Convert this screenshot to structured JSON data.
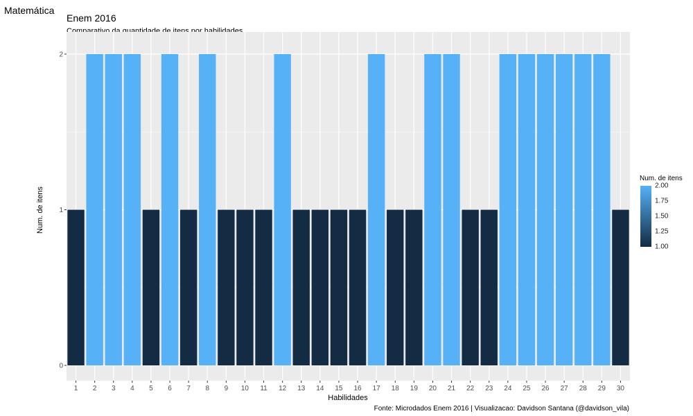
{
  "window_title": "Matemática",
  "colors": {
    "panel_background": "#EBEBEB",
    "gridline": "#FFFFFF",
    "low": "#132B43",
    "high": "#56B1F7"
  },
  "chart_data": {
    "type": "bar",
    "title": "Enem 2016",
    "subtitle": "Comparativo da quantidade de itens por habilidades",
    "xlabel": "Habilidades",
    "ylabel": "Num. de itens",
    "caption": "Fonte: Microdados Enem 2016 | Visualizacao: Davidson Santana (@davidson_vila)",
    "categories": [
      "1",
      "2",
      "3",
      "4",
      "5",
      "6",
      "7",
      "8",
      "9",
      "10",
      "11",
      "12",
      "13",
      "14",
      "15",
      "16",
      "17",
      "18",
      "19",
      "20",
      "21",
      "22",
      "23",
      "24",
      "25",
      "26",
      "27",
      "28",
      "29",
      "30"
    ],
    "values": [
      1,
      2,
      2,
      2,
      1,
      2,
      1,
      2,
      1,
      1,
      1,
      2,
      1,
      1,
      1,
      1,
      2,
      1,
      1,
      2,
      2,
      1,
      1,
      2,
      2,
      2,
      2,
      2,
      2,
      1
    ],
    "ylim": [
      0,
      2
    ],
    "y_ticks": [
      "0",
      "1",
      "2"
    ],
    "grid": true,
    "fill_scale": "continuous gradient by value",
    "legend": {
      "title": "Num. de itens",
      "position": "right",
      "range": [
        1,
        2
      ],
      "labels": [
        "1.00",
        "1.25",
        "1.50",
        "1.75",
        "2.00"
      ]
    }
  }
}
